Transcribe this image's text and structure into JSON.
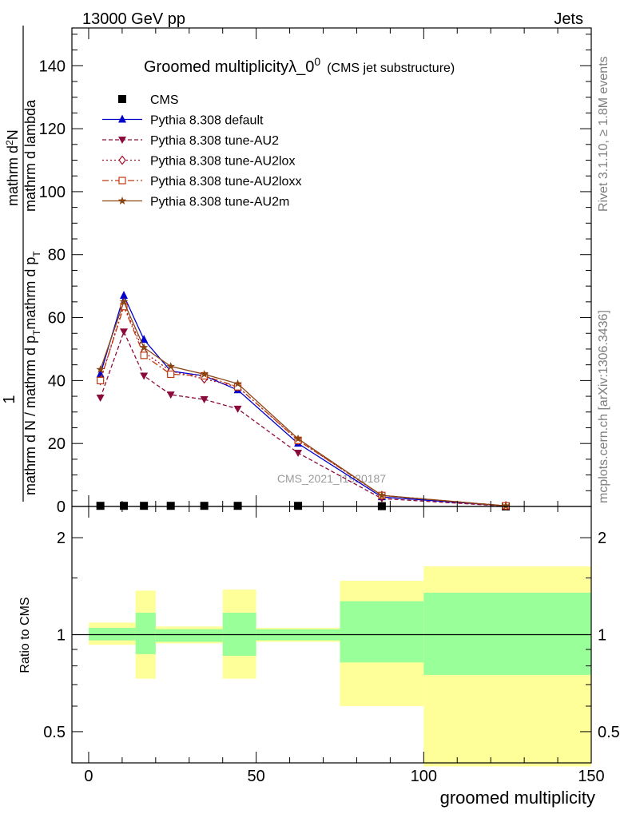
{
  "header": {
    "left": "13000 GeV pp",
    "right": "Jets"
  },
  "side_labels": {
    "top": "Rivet 3.1.10, ≥ 1.8M events",
    "bottom": "mcplots.cern.ch [arXiv:1306.3436]"
  },
  "watermark": "CMS_2021_I1920187",
  "main_title": {
    "text": "Groomed multiplicityλ_0",
    "superscript": "0",
    "suffix": "(CMS jet substructure)"
  },
  "ylabel_main": {
    "numerator": "1",
    "denominator": "mathrm d N / mathrm d p",
    "den_sub": "T",
    "den_rest": "mathrm d p",
    "den_sub2": "T",
    "den_rest2": " mathrm d lambda",
    "frac_numerator": "mathrm d",
    "frac_sup": "2",
    "frac_N": "N"
  },
  "ylabel_ratio": "Ratio to CMS",
  "xlabel": "groomed multiplicity",
  "colors": {
    "cms": "#000000",
    "default": "#0000cc",
    "au2": "#8b0a3c",
    "au2lox": "#a0102c",
    "au2loxx": "#c03a10",
    "au2m": "#8b4513",
    "band_inner": "#99ff99",
    "band_outer": "#ffff99"
  },
  "chart_data": [
    {
      "type": "line",
      "xlim": [
        -5,
        150
      ],
      "ylim": [
        0,
        152
      ],
      "xticks": [
        0,
        50,
        100,
        150
      ],
      "yticks": [
        0,
        20,
        40,
        60,
        80,
        100,
        120,
        140
      ],
      "ytick_labels": [
        "0",
        "20",
        "40",
        "60",
        "80",
        "100",
        "120",
        "140"
      ],
      "x": [
        3.5,
        10.5,
        16.5,
        24.5,
        34.5,
        44.5,
        62.5,
        87.5,
        124.5
      ],
      "series": [
        {
          "name": "CMS",
          "marker": "square",
          "values": [
            0.2,
            0.2,
            0.2,
            0.2,
            0.2,
            0.2,
            0.2,
            0.1,
            0.0
          ]
        },
        {
          "name": "Pythia 8.308 default",
          "marker": "triangle-up",
          "dash": "",
          "values": [
            42,
            67,
            53,
            43,
            41.5,
            37,
            20,
            3,
            0.2
          ]
        },
        {
          "name": "Pythia 8.308 tune-AU2",
          "marker": "triangle-down",
          "dash": "5,3",
          "values": [
            34.5,
            55.5,
            41.5,
            35.5,
            34,
            31,
            17,
            2.5,
            0.1
          ]
        },
        {
          "name": "Pythia 8.308 tune-AU2lox",
          "marker": "diamond",
          "dash": "2,3",
          "values": [
            40,
            64,
            49,
            43,
            40.5,
            38,
            21,
            3.5,
            0.2
          ]
        },
        {
          "name": "Pythia 8.308 tune-AU2loxx",
          "marker": "open-square",
          "dash": "8,3,2,3",
          "values": [
            40,
            63.5,
            48,
            42,
            41.5,
            38,
            21,
            3.5,
            0.2
          ]
        },
        {
          "name": "Pythia 8.308 tune-AU2m",
          "marker": "star",
          "dash": "",
          "values": [
            43.5,
            65,
            50.5,
            44.5,
            42,
            39,
            21.5,
            3.5,
            0.2
          ]
        }
      ]
    },
    {
      "type": "area",
      "xlim": [
        -5,
        150
      ],
      "ylim": [
        0.4,
        2.5
      ],
      "log_y": true,
      "yticks": [
        0.5,
        1,
        2
      ],
      "ytick_labels": [
        "0.5",
        "1",
        "2"
      ],
      "xtick_labels": [
        "0",
        "50",
        "100",
        "150"
      ],
      "reference": 1,
      "bins": [
        {
          "x": [
            0,
            14
          ],
          "inner": [
            0.96,
            1.05
          ],
          "outer": [
            0.93,
            1.09
          ]
        },
        {
          "x": [
            14,
            20
          ],
          "inner": [
            0.87,
            1.17
          ],
          "outer": [
            0.73,
            1.37
          ]
        },
        {
          "x": [
            20,
            40
          ],
          "inner": [
            0.95,
            1.04
          ],
          "outer": [
            0.94,
            1.06
          ]
        },
        {
          "x": [
            40,
            50
          ],
          "inner": [
            0.86,
            1.17
          ],
          "outer": [
            0.73,
            1.38
          ]
        },
        {
          "x": [
            50,
            75
          ],
          "inner": [
            0.96,
            1.04
          ],
          "outer": [
            0.95,
            1.05
          ]
        },
        {
          "x": [
            75,
            100
          ],
          "inner": [
            0.82,
            1.27
          ],
          "outer": [
            0.6,
            1.47
          ]
        },
        {
          "x": [
            100,
            150
          ],
          "inner": [
            0.75,
            1.35
          ],
          "outer": [
            0.39,
            1.63
          ]
        }
      ]
    }
  ]
}
